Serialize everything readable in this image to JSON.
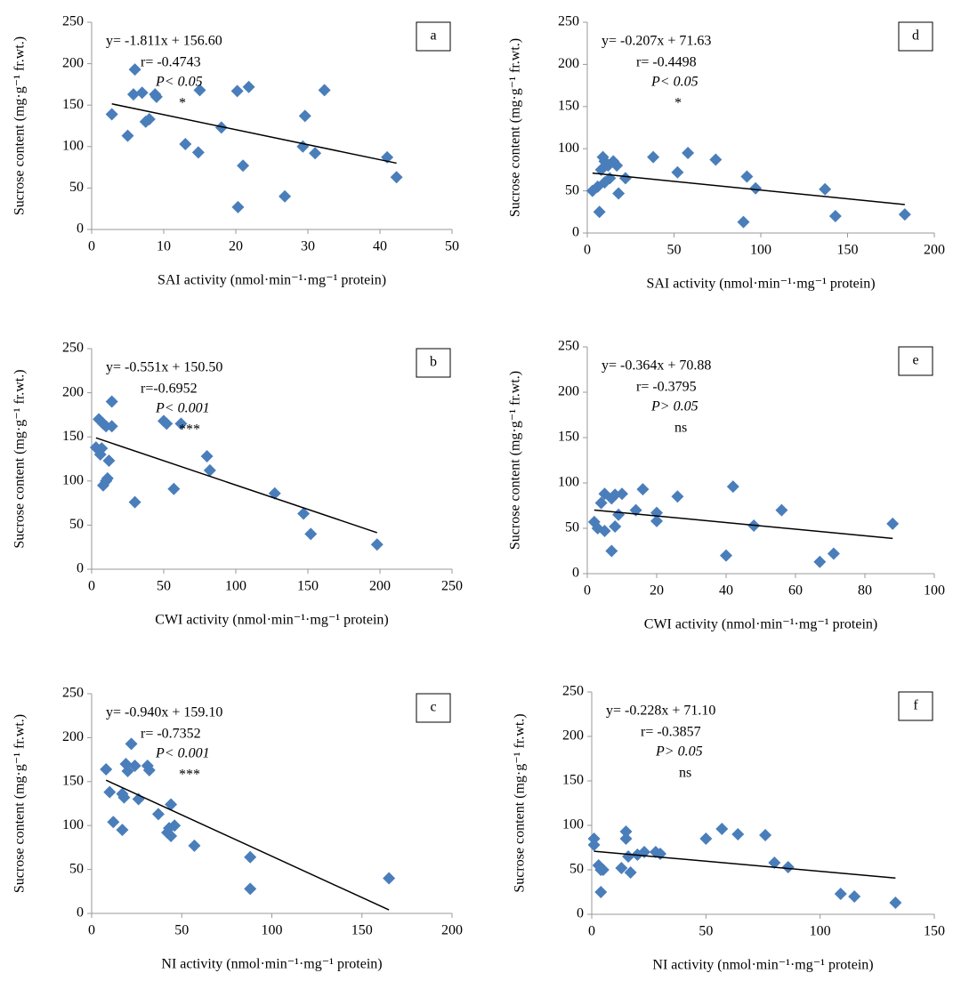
{
  "chart_data": [
    {
      "type": "scatter",
      "label": "a",
      "color": "#4a7ebb",
      "x": [
        2.8,
        5,
        6,
        5.8,
        7,
        7.5,
        8,
        8.8,
        9,
        13,
        14.8,
        15,
        18,
        20.2,
        20.3,
        21,
        21.8,
        26.8,
        29.3,
        29.6,
        31,
        32.3,
        41,
        42.3
      ],
      "y": [
        139,
        113,
        193,
        163,
        165,
        130,
        133,
        163,
        160,
        103,
        93,
        168,
        123,
        167,
        27,
        77,
        172,
        40,
        100,
        137,
        92,
        168,
        87,
        63
      ],
      "fit": {
        "slope": -1.811,
        "intercept": 156.6
      },
      "equation": "y= -1.811x + 156.60",
      "r": "r= -0.4743",
      "p": "P< 0.05",
      "significance": "*",
      "xlabel": "SAI activity (nmol·min⁻¹·mg⁻¹ protein)",
      "ylabel": "Sucrose content (mg·g⁻¹ fr.wt.)",
      "xlim": [
        0,
        50
      ],
      "xticks": [
        0,
        10,
        20,
        30,
        40,
        50
      ],
      "ylim": [
        0,
        250
      ],
      "yticks": [
        0,
        50,
        100,
        150,
        200,
        250
      ]
    },
    {
      "type": "scatter",
      "label": "b",
      "color": "#4a7ebb",
      "x": [
        3,
        5,
        6,
        7,
        8,
        8,
        10,
        10,
        11,
        12,
        14,
        14,
        30,
        50,
        52,
        57,
        62,
        80,
        82,
        127,
        147,
        152,
        198
      ],
      "y": [
        138,
        170,
        130,
        137,
        165,
        95,
        162,
        100,
        103,
        123,
        162,
        190,
        76,
        168,
        165,
        91,
        165,
        128,
        112,
        86,
        63,
        40,
        28
      ],
      "fit": {
        "slope": -0.551,
        "intercept": 150.5
      },
      "equation": "y= -0.551x + 150.50",
      "r": "r=-0.6952",
      "p": "P< 0.001",
      "significance": "***",
      "xlabel": "CWI activity (nmol·min⁻¹·mg⁻¹ protein)",
      "ylabel": "Sucrose content (mg·g⁻¹ fr.wt.)",
      "xlim": [
        0,
        250
      ],
      "xticks": [
        0,
        50,
        100,
        150,
        200,
        250
      ],
      "ylim": [
        0,
        250
      ],
      "yticks": [
        0,
        50,
        100,
        150,
        200,
        250
      ]
    },
    {
      "type": "scatter",
      "label": "c",
      "color": "#4a7ebb",
      "x": [
        8,
        10,
        12,
        17,
        17,
        18,
        19,
        20,
        22,
        24,
        26,
        31,
        32,
        37,
        42,
        43,
        44,
        44,
        46,
        57,
        88,
        88,
        165
      ],
      "y": [
        164,
        138,
        104,
        95,
        136,
        132,
        170,
        162,
        193,
        168,
        130,
        168,
        163,
        113,
        92,
        97,
        124,
        88,
        100,
        77,
        64,
        28,
        40
      ],
      "fit": {
        "slope": -0.94,
        "intercept": 159.1
      },
      "equation": "y= -0.940x + 159.10",
      "r": "r= -0.7352",
      "p": "P< 0.001",
      "significance": "***",
      "xlabel": "NI activity (nmol·min⁻¹·mg⁻¹ protein)",
      "ylabel": "Sucrose content (mg·g⁻¹ fr.wt.)",
      "xlim": [
        0,
        200
      ],
      "xticks": [
        0,
        50,
        100,
        150,
        200
      ],
      "ylim": [
        0,
        250
      ],
      "yticks": [
        0,
        50,
        100,
        150,
        200,
        250
      ]
    },
    {
      "type": "scatter",
      "label": "d",
      "color": "#4a7ebb",
      "x": [
        3,
        6,
        7,
        8,
        9,
        10,
        10,
        12,
        13,
        15,
        17,
        18,
        22,
        38,
        52,
        58,
        74,
        90,
        92,
        97,
        137,
        143,
        183
      ],
      "y": [
        50,
        55,
        25,
        75,
        90,
        85,
        60,
        80,
        65,
        85,
        80,
        47,
        65,
        90,
        72,
        95,
        87,
        13,
        67,
        53,
        52,
        20,
        22
      ],
      "fit": {
        "slope": -0.207,
        "intercept": 71.63
      },
      "equation": "y= -0.207x + 71.63",
      "r": "r= -0.4498",
      "p": "P< 0.05",
      "significance": "*",
      "xlabel": "SAI activity (nmol·min⁻¹·mg⁻¹ protein)",
      "ylabel": "Sucrose content (mg·g⁻¹ fr.wt.)",
      "xlim": [
        0,
        200
      ],
      "xticks": [
        0,
        50,
        100,
        150,
        200
      ],
      "ylim": [
        0,
        250
      ],
      "yticks": [
        0,
        50,
        100,
        150,
        200,
        250
      ]
    },
    {
      "type": "scatter",
      "label": "e",
      "color": "#4a7ebb",
      "x": [
        2,
        3,
        4,
        5,
        5,
        7,
        7,
        8,
        8,
        9,
        10,
        14,
        16,
        20,
        20,
        26,
        40,
        42,
        48,
        56,
        67,
        71,
        88
      ],
      "y": [
        57,
        50,
        78,
        47,
        88,
        25,
        83,
        87,
        52,
        65,
        88,
        70,
        93,
        58,
        67,
        85,
        20,
        96,
        53,
        70,
        13,
        22,
        55
      ],
      "fit": {
        "slope": -0.364,
        "intercept": 70.88
      },
      "equation": "y= -0.364x + 70.88",
      "r": "r= -0.3795",
      "p": "P> 0.05",
      "significance": "ns",
      "xlabel": "CWI activity (nmol·min⁻¹·mg⁻¹ protein)",
      "ylabel": "Sucrose content (mg·g⁻¹ fr.wt.)",
      "xlim": [
        0,
        100
      ],
      "xticks": [
        0,
        20,
        40,
        60,
        80,
        100
      ],
      "ylim": [
        0,
        250
      ],
      "yticks": [
        0,
        50,
        100,
        150,
        200,
        250
      ]
    },
    {
      "type": "scatter",
      "label": "f",
      "color": "#4a7ebb",
      "x": [
        1,
        1,
        3,
        4,
        4,
        5,
        13,
        15,
        15,
        16,
        17,
        20,
        23,
        28,
        30,
        50,
        57,
        64,
        76,
        80,
        86,
        109,
        115,
        133
      ],
      "y": [
        85,
        78,
        55,
        50,
        25,
        50,
        52,
        93,
        85,
        65,
        47,
        67,
        70,
        70,
        68,
        85,
        96,
        90,
        89,
        58,
        53,
        23,
        20,
        13
      ],
      "fit": {
        "slope": -0.228,
        "intercept": 71.1
      },
      "equation": "y= -0.228x + 71.10",
      "r": "r= -0.3857",
      "p": "P> 0.05",
      "significance": "ns",
      "xlabel": "NI activity (nmol·min⁻¹·mg⁻¹ protein)",
      "ylabel": "Sucrose content (mg·g⁻¹ fr.wt.)",
      "xlim": [
        0,
        150
      ],
      "xticks": [
        0,
        50,
        100,
        150
      ],
      "ylim": [
        0,
        250
      ],
      "yticks": [
        0,
        50,
        100,
        150,
        200,
        250
      ]
    }
  ]
}
